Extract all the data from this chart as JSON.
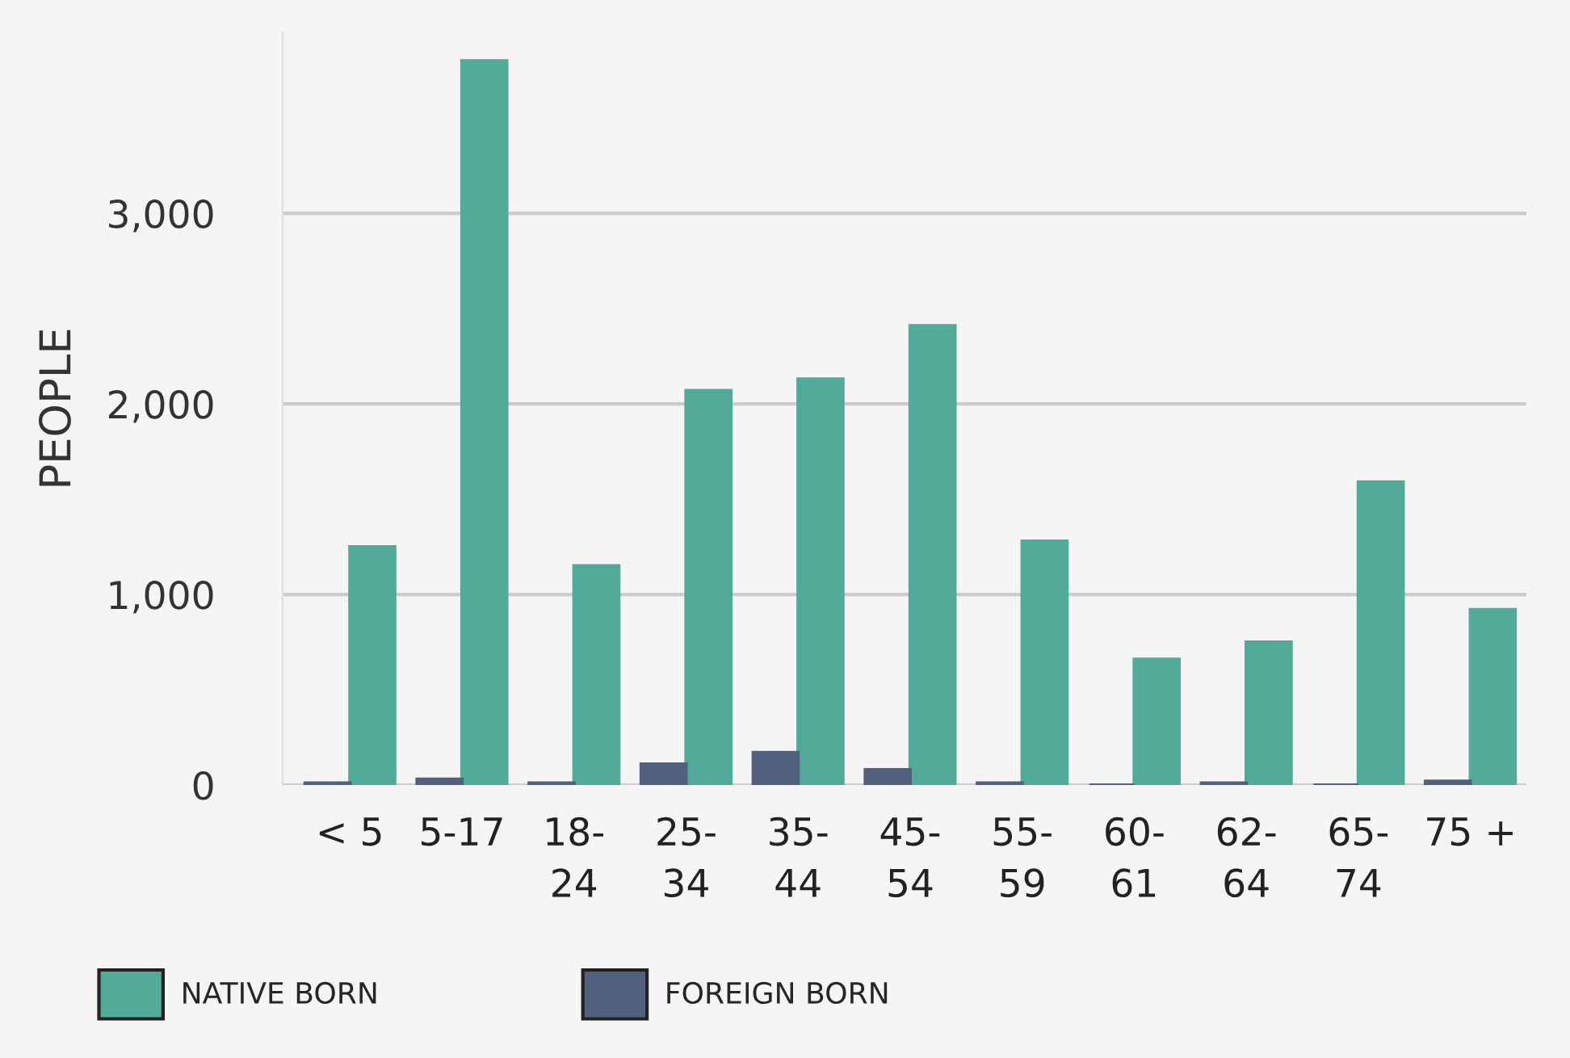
{
  "chart_data": {
    "type": "bar",
    "ylabel": "PEOPLE",
    "categories": [
      "< 5",
      "5-17",
      "18-\n24",
      "25-\n34",
      "35-\n44",
      "45-\n54",
      "55-\n59",
      "60-\n61",
      "62-\n64",
      "65-\n74",
      "75 +"
    ],
    "series": [
      {
        "name": "NATIVE BORN",
        "color": "#52ab98",
        "values": [
          1250,
          3800,
          1150,
          2070,
          2130,
          2410,
          1280,
          660,
          750,
          1590,
          920
        ]
      },
      {
        "name": "FOREIGN BORN",
        "color": "#52607f",
        "values": [
          10,
          30,
          10,
          110,
          170,
          80,
          10,
          0,
          10,
          0,
          20
        ]
      }
    ],
    "ylim": [
      0,
      3950
    ],
    "yticks": [
      0,
      {
        "value": 1000,
        "label": "1,000"
      },
      {
        "value": 2000,
        "label": "2,000"
      },
      {
        "value": 3000,
        "label": "3,000"
      }
    ],
    "grid": "y",
    "legend": "bottom left"
  }
}
